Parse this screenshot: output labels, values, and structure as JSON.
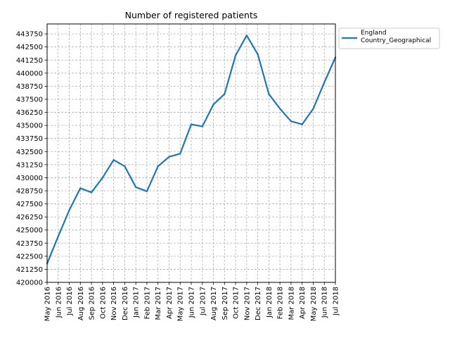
{
  "chart_data": {
    "type": "line",
    "title": "Number of registered patients",
    "xlabel": "",
    "ylabel": "",
    "x": [
      "May 2016",
      "Jun 2016",
      "Jul 2016",
      "Aug 2016",
      "Sep 2016",
      "Oct 2016",
      "Nov 2016",
      "Dec 2016",
      "Jan 2017",
      "Feb 2017",
      "Mar 2017",
      "Apr 2017",
      "May 2017",
      "Jun 2017",
      "Jul 2017",
      "Aug 2017",
      "Sep 2017",
      "Oct 2017",
      "Nov 2017",
      "Dec 2017",
      "Jan 2018",
      "Feb 2018",
      "Mar 2018",
      "Apr 2018",
      "May 2018",
      "Jun 2018",
      "Jul 2018"
    ],
    "series": [
      {
        "name": "England\nCountry_Geographical",
        "color": "#1f77b4",
        "values": [
          421800,
          424400,
          426900,
          429000,
          428600,
          430000,
          431700,
          431100,
          429100,
          428700,
          431100,
          432000,
          432300,
          435100,
          434900,
          437000,
          438000,
          441700,
          443600,
          441800,
          438000,
          436600,
          435400,
          435100,
          436600,
          439100,
          441500
        ]
      }
    ],
    "ylim": [
      420000,
      444700
    ],
    "yticks": [
      420000,
      421250,
      422500,
      423750,
      425000,
      426250,
      427500,
      428750,
      430000,
      431250,
      432500,
      433750,
      435000,
      436250,
      437500,
      438750,
      440000,
      441250,
      442500,
      443750
    ],
    "grid": true,
    "grid_style": "dashed",
    "legend_position": "outside-top-right"
  }
}
